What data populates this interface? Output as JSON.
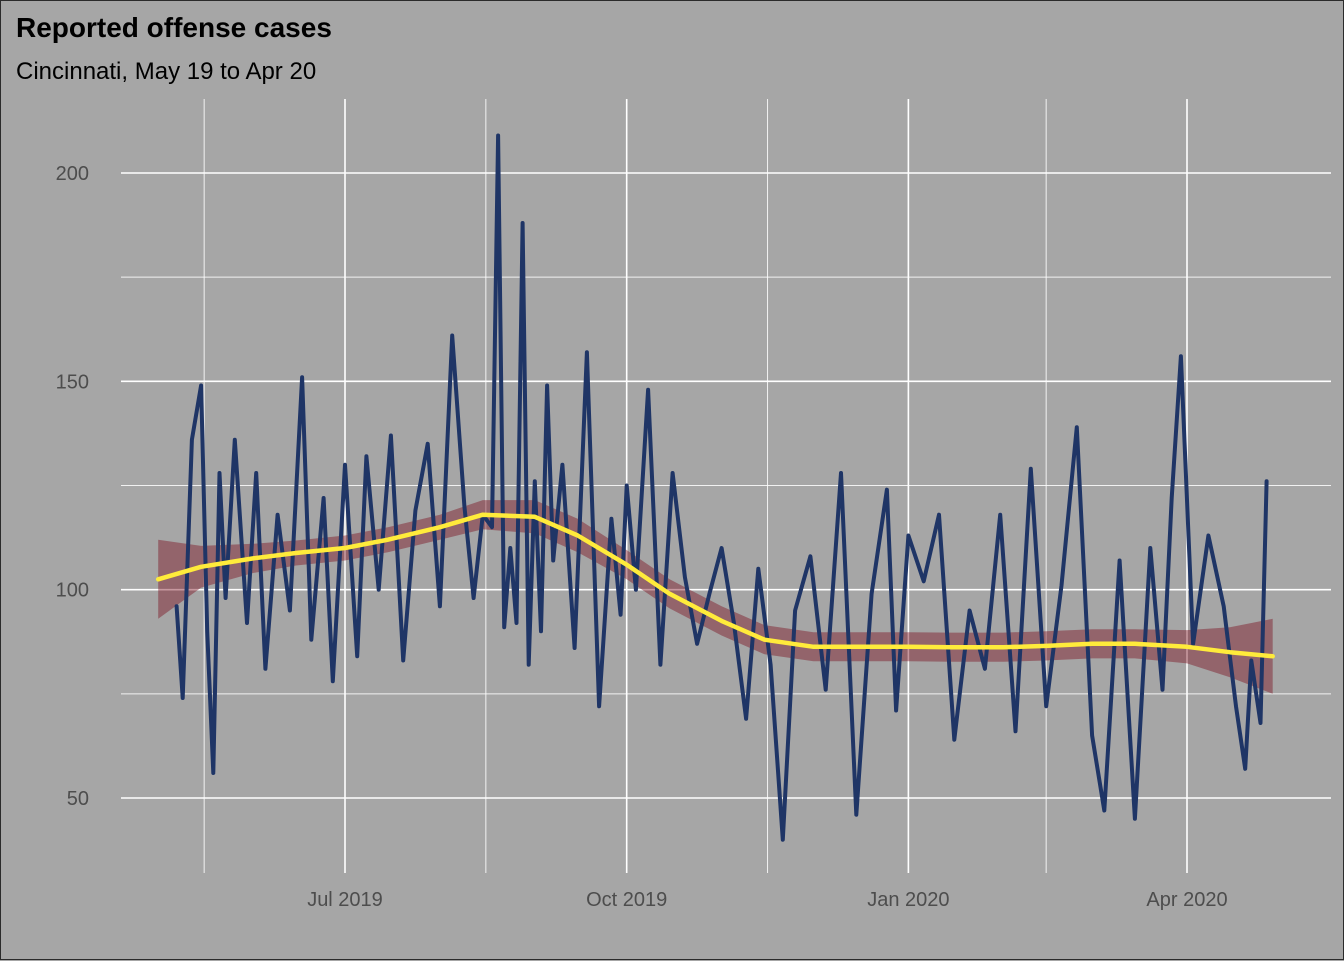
{
  "chart_data": {
    "type": "line",
    "title": "Reported offense cases",
    "subtitle": "Cincinnati, May 19 to Apr 20",
    "xlabel": "",
    "ylabel": "",
    "x_range": [
      "2019-05-01",
      "2020-04-30"
    ],
    "ylim": [
      30,
      214
    ],
    "y_ticks": [
      50,
      100,
      150,
      200
    ],
    "x_ticks": [
      {
        "date": "2019-07-01",
        "label": "Jul 2019"
      },
      {
        "date": "2019-10-01",
        "label": "Oct 2019"
      },
      {
        "date": "2020-01-01",
        "label": "Jan 2020"
      },
      {
        "date": "2020-04-01",
        "label": "Apr 2020"
      }
    ],
    "x_minor_ticks": [
      "2019-05-16",
      "2019-08-16",
      "2019-11-16",
      "2020-02-15"
    ],
    "grid": true,
    "colors": {
      "background": "#a6a6a6",
      "grid": "#ffffff",
      "series": "#1f3566",
      "smooth": "#ffeb3b",
      "band": "#7a0a1a"
    },
    "series": [
      {
        "type": "line",
        "x": [
          "2019-05-07",
          "2019-05-09",
          "2019-05-12",
          "2019-05-15",
          "2019-05-17",
          "2019-05-19",
          "2019-05-21",
          "2019-05-23",
          "2019-05-26",
          "2019-05-30",
          "2019-06-02",
          "2019-06-05",
          "2019-06-09",
          "2019-06-13",
          "2019-06-17",
          "2019-06-20",
          "2019-06-24",
          "2019-06-27",
          "2019-07-01",
          "2019-07-05",
          "2019-07-08",
          "2019-07-12",
          "2019-07-16",
          "2019-07-20",
          "2019-07-24",
          "2019-07-28",
          "2019-08-01",
          "2019-08-05",
          "2019-08-09",
          "2019-08-12",
          "2019-08-15",
          "2019-08-18",
          "2019-08-20",
          "2019-08-22",
          "2019-08-24",
          "2019-08-26",
          "2019-08-28",
          "2019-08-30",
          "2019-09-01",
          "2019-09-03",
          "2019-09-05",
          "2019-09-07",
          "2019-09-10",
          "2019-09-14",
          "2019-09-18",
          "2019-09-22",
          "2019-09-26",
          "2019-09-29",
          "2019-10-01",
          "2019-10-04",
          "2019-10-08",
          "2019-10-12",
          "2019-10-16",
          "2019-10-20",
          "2019-10-24",
          "2019-10-28",
          "2019-11-01",
          "2019-11-05",
          "2019-11-09",
          "2019-11-13",
          "2019-11-17",
          "2019-11-21",
          "2019-11-25",
          "2019-11-30",
          "2019-12-05",
          "2019-12-10",
          "2019-12-15",
          "2019-12-20",
          "2019-12-25",
          "2019-12-28",
          "2020-01-01",
          "2020-01-06",
          "2020-01-11",
          "2020-01-16",
          "2020-01-21",
          "2020-01-26",
          "2020-01-31",
          "2020-02-05",
          "2020-02-10",
          "2020-02-15",
          "2020-02-20",
          "2020-02-25",
          "2020-03-01",
          "2020-03-05",
          "2020-03-10",
          "2020-03-15",
          "2020-03-20",
          "2020-03-24",
          "2020-03-27",
          "2020-03-30",
          "2020-04-03",
          "2020-04-08",
          "2020-04-13",
          "2020-04-17",
          "2020-04-20",
          "2020-04-22",
          "2020-04-25",
          "2020-04-27"
        ],
        "y": [
          96,
          74,
          136,
          149,
          90,
          56,
          128,
          98,
          136,
          92,
          128,
          81,
          118,
          95,
          151,
          88,
          122,
          78,
          130,
          84,
          132,
          100,
          137,
          83,
          119,
          135,
          96,
          161,
          120,
          98,
          118,
          115,
          209,
          91,
          110,
          92,
          188,
          82,
          126,
          90,
          149,
          107,
          130,
          86,
          157,
          72,
          117,
          94,
          125,
          100,
          148,
          82,
          128,
          103,
          87,
          99,
          110,
          92,
          69,
          105,
          82,
          40,
          95,
          108,
          76,
          128,
          46,
          99,
          124,
          71,
          113,
          102,
          118,
          64,
          95,
          81,
          118,
          66,
          129,
          72,
          101,
          139,
          65,
          47,
          107,
          45,
          110,
          76,
          122,
          156,
          87,
          113,
          96,
          72,
          57,
          83,
          68,
          126
        ]
      }
    ],
    "smooth": {
      "x": [
        "2019-05-01",
        "2019-05-15",
        "2019-06-01",
        "2019-06-15",
        "2019-07-01",
        "2019-07-15",
        "2019-08-01",
        "2019-08-15",
        "2019-09-01",
        "2019-09-15",
        "2019-10-01",
        "2019-10-15",
        "2019-11-01",
        "2019-11-15",
        "2019-12-01",
        "2019-12-15",
        "2020-01-01",
        "2020-01-15",
        "2020-02-01",
        "2020-02-15",
        "2020-03-01",
        "2020-03-15",
        "2020-04-01",
        "2020-04-15",
        "2020-04-29"
      ],
      "y": [
        102.5,
        105.5,
        107.5,
        108.8,
        110,
        112,
        115,
        118,
        117.5,
        113,
        106,
        99,
        92.5,
        88,
        86.3,
        86.3,
        86.3,
        86.2,
        86.2,
        86.5,
        87,
        87,
        86.3,
        85,
        84
      ],
      "ci_half_width": [
        9.5,
        5,
        3.5,
        3,
        3,
        3,
        3,
        3.5,
        4,
        4,
        3.5,
        3.5,
        3.5,
        3.5,
        3.5,
        3.5,
        3.5,
        3.5,
        3.5,
        3.5,
        3.5,
        3.5,
        4,
        6,
        9
      ]
    }
  }
}
